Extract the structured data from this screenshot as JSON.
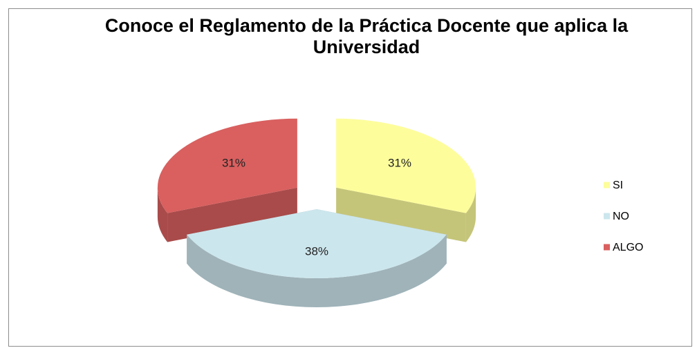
{
  "chart_data": {
    "type": "pie",
    "title": "Conoce el Reglamento de la Práctica Docente que aplica la Universidad",
    "categories": [
      "SI",
      "NO",
      "ALGO"
    ],
    "values": [
      31,
      38,
      31
    ],
    "value_labels": [
      "31%",
      "38%",
      "31%"
    ],
    "colors": [
      "#fdfd9c",
      "#cce6ed",
      "#d9605f"
    ],
    "legend": "right"
  }
}
